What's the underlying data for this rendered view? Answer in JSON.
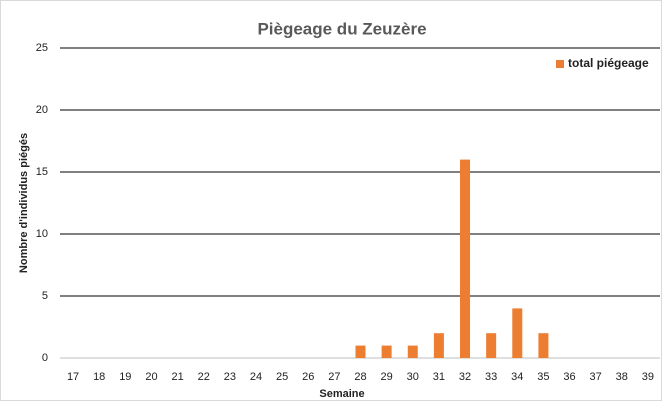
{
  "chart_data": {
    "type": "bar",
    "title": "Piègeage du Zeuzère",
    "x_label": "Semaine",
    "y_label": "Nombre d'individus piégés",
    "categories": [
      "17",
      "18",
      "19",
      "20",
      "21",
      "22",
      "23",
      "24",
      "25",
      "26",
      "27",
      "28",
      "29",
      "30",
      "31",
      "32",
      "33",
      "34",
      "35",
      "36",
      "37",
      "38",
      "39"
    ],
    "series": [
      {
        "name": "total piégeage",
        "color": "#ed7d31",
        "values": [
          0,
          0,
          0,
          0,
          0,
          0,
          0,
          0,
          0,
          0,
          0,
          1,
          1,
          1,
          2,
          16,
          2,
          4,
          2,
          0,
          0,
          0,
          0
        ]
      }
    ],
    "ylim": [
      0,
      25
    ],
    "yticks": [
      0,
      5,
      10,
      15,
      20,
      25
    ],
    "grid": true,
    "legend": "top-right"
  }
}
